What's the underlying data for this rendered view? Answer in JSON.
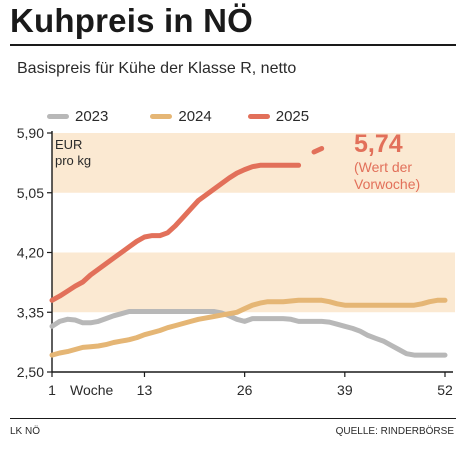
{
  "chart_data": {
    "type": "line",
    "title": "Kuhpreis in NÖ",
    "subtitle": "Basispreis für Kühe der Klasse R, netto",
    "unit_label": [
      "EUR",
      "pro kg"
    ],
    "xlabel": "Woche",
    "xlim": [
      1,
      52
    ],
    "ylim": [
      2.5,
      5.9
    ],
    "x_ticks": [
      1,
      13,
      26,
      39,
      52
    ],
    "y_ticks": [
      2.5,
      3.35,
      4.2,
      5.05,
      5.9
    ],
    "y_tick_labels": [
      "2,50",
      "3,35",
      "4,20",
      "5,05",
      "5,90"
    ],
    "x_tick_labels": [
      "1",
      "13",
      "26",
      "39",
      "52"
    ],
    "bands": [
      [
        3.35,
        4.2
      ],
      [
        5.05,
        5.9
      ]
    ],
    "legend_position": "top",
    "series": [
      {
        "name": "2023",
        "color": "#b8b8b8",
        "x": [
          1,
          2,
          3,
          4,
          5,
          6,
          7,
          8,
          9,
          10,
          11,
          12,
          13,
          14,
          15,
          16,
          17,
          18,
          19,
          20,
          21,
          22,
          23,
          24,
          25,
          26,
          27,
          28,
          29,
          30,
          31,
          32,
          33,
          34,
          35,
          36,
          37,
          38,
          39,
          40,
          41,
          42,
          43,
          44,
          45,
          46,
          47,
          48,
          49,
          50,
          51,
          52
        ],
        "values": [
          3.15,
          3.22,
          3.25,
          3.24,
          3.2,
          3.2,
          3.22,
          3.26,
          3.3,
          3.33,
          3.36,
          3.36,
          3.36,
          3.36,
          3.36,
          3.36,
          3.36,
          3.36,
          3.36,
          3.36,
          3.36,
          3.36,
          3.34,
          3.3,
          3.25,
          3.22,
          3.26,
          3.26,
          3.26,
          3.26,
          3.26,
          3.25,
          3.22,
          3.22,
          3.22,
          3.22,
          3.21,
          3.18,
          3.15,
          3.12,
          3.08,
          3.02,
          2.98,
          2.94,
          2.88,
          2.82,
          2.76,
          2.74,
          2.74,
          2.74,
          2.74,
          2.74
        ]
      },
      {
        "name": "2024",
        "color": "#e5b675",
        "x": [
          1,
          2,
          3,
          4,
          5,
          6,
          7,
          8,
          9,
          10,
          11,
          12,
          13,
          14,
          15,
          16,
          17,
          18,
          19,
          20,
          21,
          22,
          23,
          24,
          25,
          26,
          27,
          28,
          29,
          30,
          31,
          32,
          33,
          34,
          35,
          36,
          37,
          38,
          39,
          40,
          41,
          42,
          43,
          44,
          45,
          46,
          47,
          48,
          49,
          50,
          51,
          52
        ],
        "values": [
          2.74,
          2.77,
          2.79,
          2.82,
          2.85,
          2.86,
          2.87,
          2.89,
          2.92,
          2.94,
          2.96,
          2.99,
          3.03,
          3.06,
          3.09,
          3.13,
          3.16,
          3.19,
          3.22,
          3.25,
          3.27,
          3.29,
          3.31,
          3.33,
          3.35,
          3.4,
          3.45,
          3.48,
          3.5,
          3.5,
          3.5,
          3.51,
          3.52,
          3.52,
          3.52,
          3.52,
          3.5,
          3.47,
          3.45,
          3.45,
          3.45,
          3.45,
          3.45,
          3.45,
          3.45,
          3.45,
          3.45,
          3.45,
          3.47,
          3.5,
          3.52,
          3.52
        ]
      },
      {
        "name": "2025",
        "color": "#e2705a",
        "x": [
          1,
          2,
          3,
          4,
          5,
          6,
          7,
          8,
          9,
          10,
          11,
          12,
          13,
          14,
          15,
          16,
          17,
          18,
          19,
          20,
          21,
          22,
          23,
          24,
          25,
          26,
          27,
          28,
          29,
          30,
          31,
          32,
          33
        ],
        "values": [
          3.52,
          3.58,
          3.65,
          3.72,
          3.78,
          3.88,
          3.96,
          4.04,
          4.12,
          4.2,
          4.28,
          4.36,
          4.42,
          4.44,
          4.44,
          4.48,
          4.58,
          4.7,
          4.82,
          4.94,
          5.02,
          5.1,
          5.18,
          5.26,
          5.33,
          5.38,
          5.42,
          5.44,
          5.44,
          5.44,
          5.44,
          5.44,
          5.44
        ],
        "extension": {
          "x": [
            35,
            36
          ],
          "values": [
            5.63,
            5.68
          ]
        }
      }
    ],
    "annotation": {
      "value": "5,74",
      "note": [
        "(Wert der",
        "Vorwoche)"
      ],
      "color": "#e2705a",
      "position": "top-right"
    },
    "grid": false
  },
  "footer": {
    "left": "LK NÖ",
    "right": "QUELLE: RINDERBÖRSE"
  }
}
